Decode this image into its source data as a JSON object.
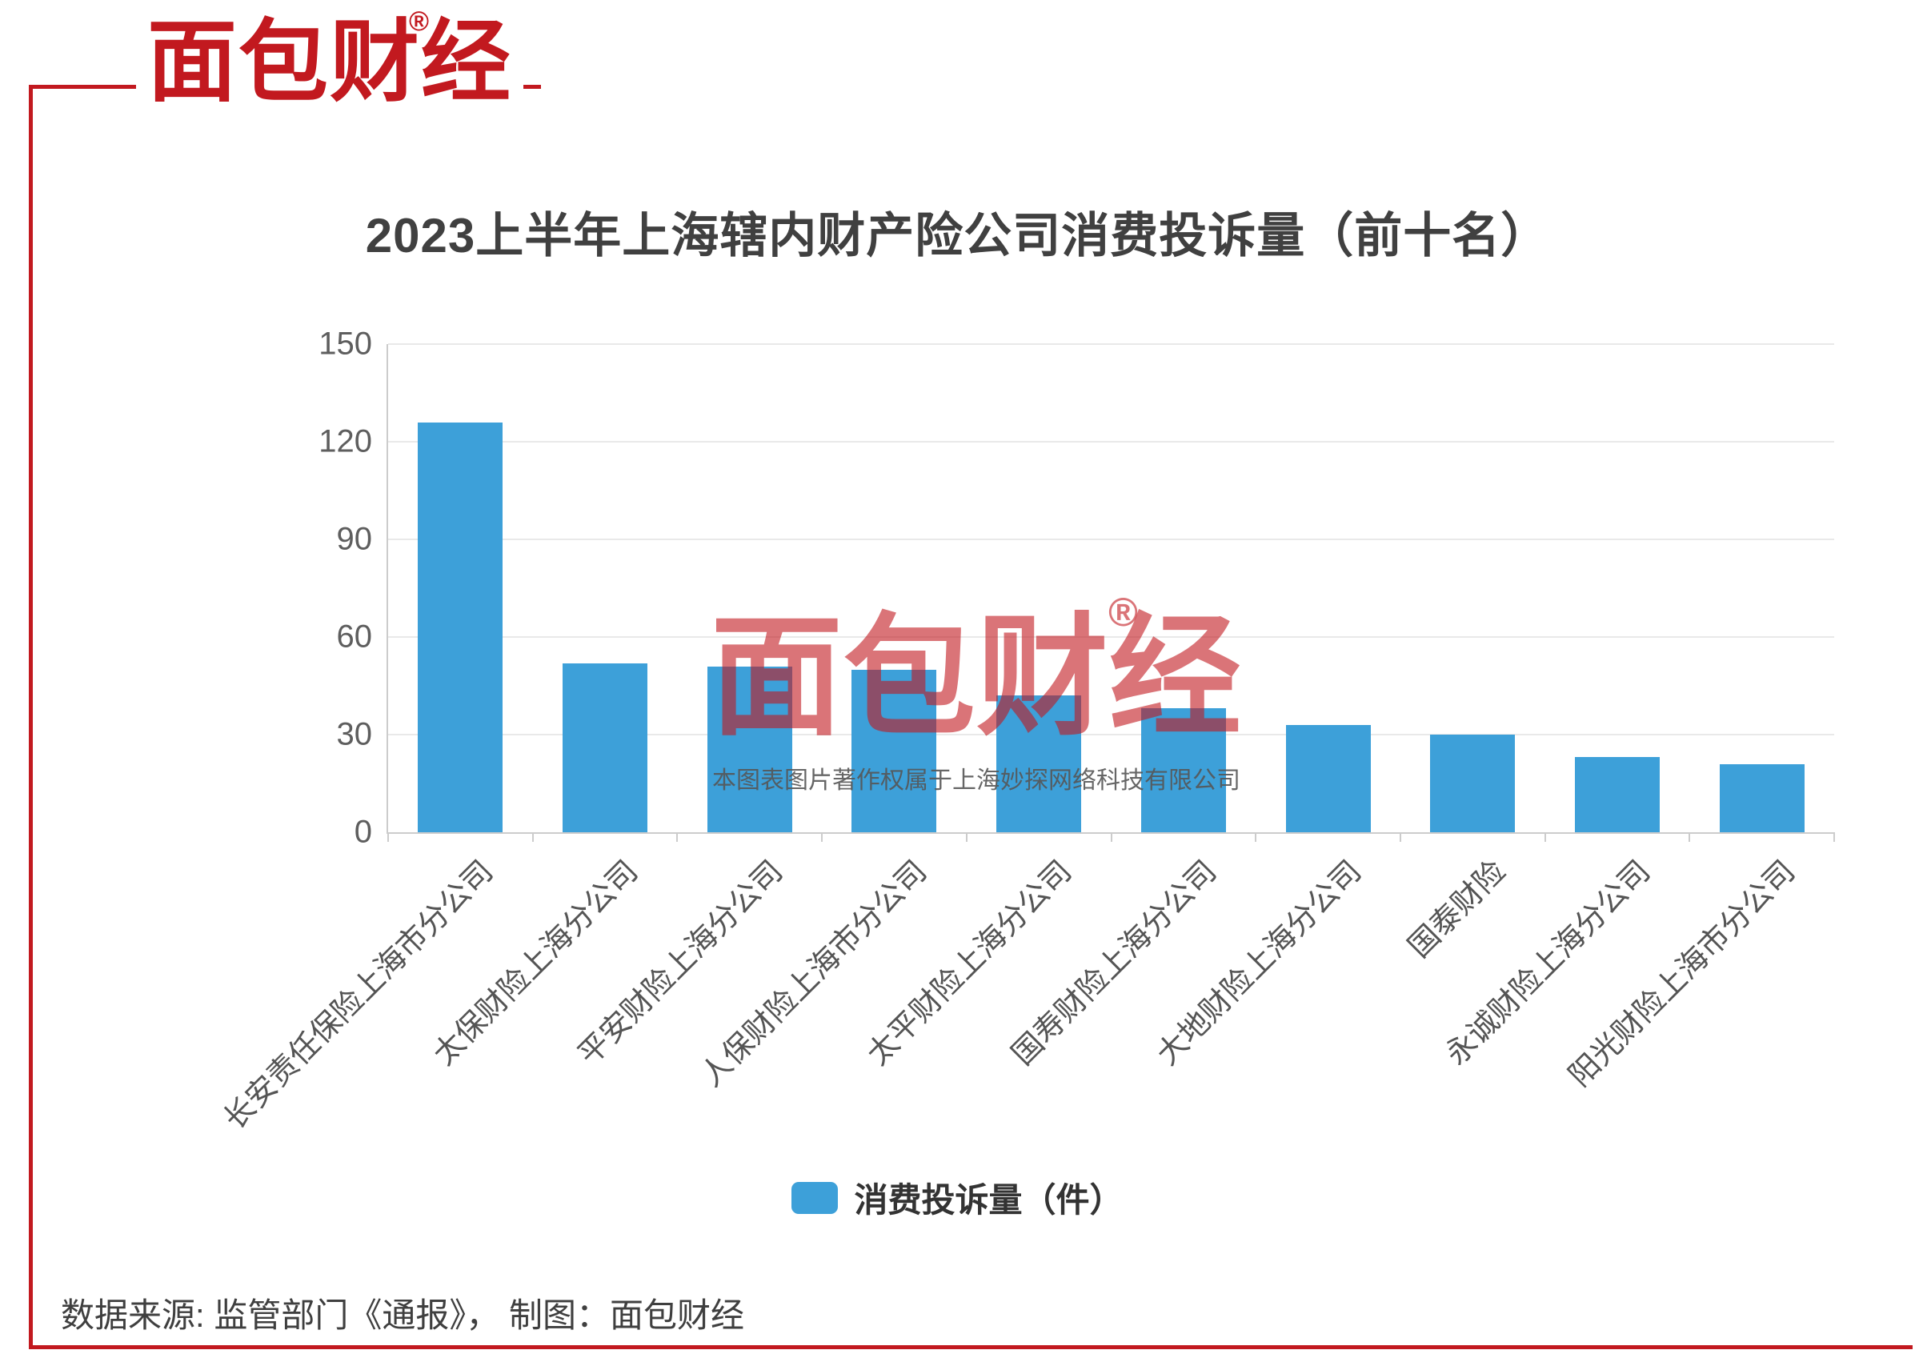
{
  "page": {
    "background": "#ffffff",
    "accent_red": "#c2191f"
  },
  "logo": {
    "text": "面包财经",
    "registered": "®"
  },
  "chart_data": {
    "type": "bar",
    "title": "2023上半年上海辖内财产险公司消费投诉量（前十名）",
    "categories": [
      "长安责任保险上海市分公司",
      "太保财险上海分公司",
      "平安财险上海分公司",
      "人保财险上海市分公司",
      "太平财险上海分公司",
      "国寿财险上海分公司",
      "大地财险上海分公司",
      "国泰财险",
      "永诚财险上海分公司",
      "阳光财险上海市分公司"
    ],
    "values": [
      126,
      52,
      51,
      50,
      42,
      38,
      33,
      30,
      23,
      21
    ],
    "series_name": "消费投诉量（件）",
    "xlabel": "",
    "ylabel": "",
    "ylim": [
      0,
      150
    ],
    "yticks": [
      0,
      30,
      60,
      90,
      120,
      150
    ],
    "bar_color": "#3da0d9",
    "grid": true,
    "legend_position": "bottom"
  },
  "legend": {
    "label": "消费投诉量（件）"
  },
  "watermark": {
    "logo_text": "面包财经",
    "registered": "®",
    "caption": "本图表图片著作权属于上海妙探网络科技有限公司"
  },
  "footer": {
    "text": "数据来源: 监管部门《通报》， 制图：面包财经"
  }
}
